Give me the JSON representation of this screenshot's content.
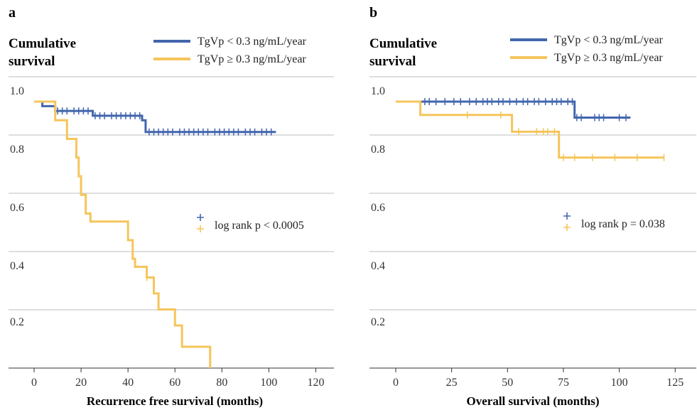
{
  "chart_data": [
    {
      "panel": "a",
      "type": "line",
      "ylabel": "Cumulative survival",
      "xlabel": "Recurrence free survival (months)",
      "xlim": [
        0,
        125
      ],
      "ylim": [
        0,
        1.08
      ],
      "xticks": [
        0,
        20,
        40,
        60,
        80,
        100,
        120
      ],
      "yticks": [
        0.2,
        0.4,
        0.6,
        0.8,
        1.0
      ],
      "ytick_labels": [
        "0.2",
        "0.4",
        "0.6",
        "0.8",
        "1.0"
      ],
      "grid": true,
      "legend_position": "top-right",
      "annotation": "log rank p < 0.0005",
      "series": [
        {
          "name": "TgVp < 0.3 ng/mL/year",
          "color": "#4266ad",
          "step_x": [
            0,
            3.5,
            9,
            25,
            46,
            47.5,
            103
          ],
          "step_y": [
            1.0,
            0.983,
            0.965,
            0.947,
            0.93,
            0.886,
            0.886
          ],
          "censor_x": [
            10,
            12,
            14,
            17,
            19,
            21,
            23,
            26,
            28,
            30,
            33,
            35,
            37,
            39,
            41,
            43,
            45,
            49,
            51,
            53,
            55,
            57,
            59,
            62,
            64,
            66,
            68,
            70,
            72,
            74,
            77,
            79,
            81,
            83,
            85,
            87,
            90,
            92,
            94,
            97,
            99,
            101
          ],
          "censor_y": [
            0.965,
            0.965,
            0.965,
            0.965,
            0.965,
            0.965,
            0.965,
            0.947,
            0.947,
            0.947,
            0.947,
            0.947,
            0.947,
            0.947,
            0.947,
            0.947,
            0.947,
            0.886,
            0.886,
            0.886,
            0.886,
            0.886,
            0.886,
            0.886,
            0.886,
            0.886,
            0.886,
            0.886,
            0.886,
            0.886,
            0.886,
            0.886,
            0.886,
            0.886,
            0.886,
            0.886,
            0.886,
            0.886,
            0.886,
            0.886,
            0.886,
            0.886
          ]
        },
        {
          "name": "TgVp ≥ 0.3 ng/mL/year",
          "color": "#f5c55b",
          "step_x": [
            0,
            9,
            14,
            18,
            19,
            20,
            22,
            24,
            40,
            42,
            43,
            48,
            51,
            53,
            60,
            63,
            75
          ],
          "step_y": [
            1.0,
            0.93,
            0.86,
            0.79,
            0.72,
            0.65,
            0.58,
            0.55,
            0.48,
            0.41,
            0.38,
            0.34,
            0.28,
            0.22,
            0.16,
            0.08,
            0.0
          ],
          "censor_x": [
            48
          ],
          "censor_y": [
            0.34
          ]
        }
      ]
    },
    {
      "panel": "b",
      "type": "line",
      "ylabel": "Cumulative survival",
      "xlabel": "Overall survival (months)",
      "xlim": [
        0,
        130
      ],
      "ylim": [
        0,
        1.08
      ],
      "xticks": [
        0,
        25,
        50,
        75,
        100,
        125
      ],
      "yticks": [
        0.2,
        0.4,
        0.6,
        0.8,
        1.0
      ],
      "ytick_labels": [
        "0.2",
        "0.4",
        "0.6",
        "0.8",
        "1.0"
      ],
      "grid": true,
      "legend_position": "top-right",
      "annotation": "log rank p = 0.038",
      "series": [
        {
          "name": "TgVp < 0.3 ng/mL/year",
          "color": "#4266ad",
          "step_x": [
            0,
            80,
            105
          ],
          "step_y": [
            1.0,
            0.94,
            0.94
          ],
          "censor_x": [
            13,
            15,
            18,
            22,
            26,
            29,
            33,
            36,
            39,
            41,
            43,
            46,
            48,
            51,
            54,
            57,
            59,
            62,
            64,
            67,
            70,
            72,
            74,
            77,
            79,
            81,
            83,
            89,
            91,
            93,
            100,
            103
          ],
          "censor_y": [
            1,
            1,
            1,
            1,
            1,
            1,
            1,
            1,
            1,
            1,
            1,
            1,
            1,
            1,
            1,
            1,
            1,
            1,
            1,
            1,
            1,
            1,
            1,
            1,
            1,
            0.94,
            0.94,
            0.94,
            0.94,
            0.94,
            0.94,
            0.94
          ]
        },
        {
          "name": "TgVp ≥ 0.3 ng/mL/year",
          "color": "#f5c55b",
          "step_x": [
            0,
            11,
            52,
            73,
            120
          ],
          "step_y": [
            1.0,
            0.95,
            0.887,
            0.79,
            0.79
          ],
          "censor_x": [
            32,
            47,
            55,
            63,
            66,
            68,
            71,
            75,
            80,
            88,
            98,
            108,
            120
          ],
          "censor_y": [
            0.95,
            0.95,
            0.887,
            0.887,
            0.887,
            0.887,
            0.887,
            0.79,
            0.79,
            0.79,
            0.79,
            0.79,
            0.79
          ]
        }
      ]
    }
  ]
}
